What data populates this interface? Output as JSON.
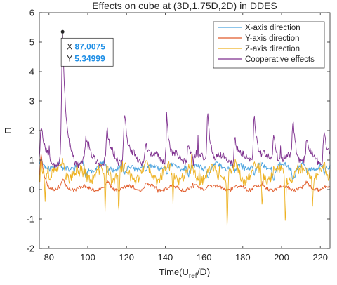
{
  "chart_data": {
    "type": "line",
    "title": "Effects on cube at (3D,1.75D,2D) in DDES",
    "xlabel": {
      "pre": "Time(U",
      "sub": "ref",
      "post": "/D)"
    },
    "ylabel": "Π",
    "xlim": [
      75,
      225
    ],
    "ylim": [
      -2,
      6
    ],
    "xticks": [
      80,
      100,
      120,
      140,
      160,
      180,
      200,
      220
    ],
    "yticks": [
      -2,
      -1,
      0,
      1,
      2,
      3,
      4,
      5,
      6
    ],
    "xtick_labels": [
      "80",
      "100",
      "120",
      "140",
      "160",
      "180",
      "200",
      "220"
    ],
    "ytick_labels": [
      "-2",
      "-1",
      "0",
      "1",
      "2",
      "3",
      "4",
      "5",
      "6"
    ],
    "legend_position": "top-right",
    "series": [
      {
        "name": "X-axis direction",
        "color": "#4aa3df",
        "baseline": 0.8,
        "var": 0.18,
        "peak_scale": 0.18,
        "spike": 0.05,
        "seed": 11,
        "peaks": [
          [
            76,
            0.9
          ],
          [
            87,
            0.6
          ],
          [
            99,
            0.4
          ],
          [
            110,
            0.5
          ],
          [
            119,
            0.4
          ],
          [
            130,
            0.5
          ],
          [
            141,
            0.5
          ],
          [
            152,
            0.4
          ],
          [
            162,
            0.4
          ],
          [
            176,
            0.5
          ],
          [
            186,
            0.5
          ],
          [
            196,
            0.4
          ],
          [
            206,
            0.4
          ],
          [
            213,
            0.5
          ],
          [
            222,
            0.4
          ]
        ]
      },
      {
        "name": "Y-axis direction",
        "color": "#e15b2a",
        "baseline": 0.05,
        "var": 0.12,
        "peak_scale": 0.1,
        "spike": 0.08,
        "seed": 23,
        "peaks": [
          [
            76,
            1.2
          ],
          [
            87,
            0.3
          ],
          [
            110,
            0.2
          ],
          [
            130,
            0.2
          ],
          [
            162,
            0.2
          ],
          [
            186,
            0.2
          ],
          [
            213,
            0.2
          ]
        ]
      },
      {
        "name": "Z-axis direction",
        "color": "#edb120",
        "baseline": 0.5,
        "var": 0.35,
        "peak_scale": 0.45,
        "spike": 0.35,
        "seed": 37,
        "peaks": [
          [
            76,
            1.0
          ],
          [
            87,
            1.0
          ],
          [
            99,
            0.6
          ],
          [
            110,
            0.8
          ],
          [
            119,
            0.6
          ],
          [
            130,
            0.7
          ],
          [
            141,
            0.7
          ],
          [
            152,
            0.6
          ],
          [
            162,
            0.6
          ],
          [
            176,
            0.7
          ],
          [
            186,
            0.8
          ],
          [
            196,
            0.6
          ],
          [
            206,
            0.6
          ],
          [
            213,
            0.7
          ],
          [
            222,
            0.6
          ]
        ],
        "dips": [
          [
            78,
            -0.3
          ],
          [
            109,
            -0.9
          ],
          [
            116,
            -1.0
          ],
          [
            144,
            -0.4
          ],
          [
            172,
            -1.35
          ],
          [
            190,
            -0.6
          ],
          [
            202,
            -1.05
          ],
          [
            216,
            -0.5
          ]
        ]
      },
      {
        "name": "Cooperative effects",
        "color": "#7e2f8e",
        "baseline": 1.0,
        "var": 0.25,
        "peak_scale": 0.5,
        "spike": 0.25,
        "seed": 53,
        "peaks": [
          [
            76,
            2.1
          ],
          [
            87,
            5.35
          ],
          [
            99,
            1.6
          ],
          [
            110,
            2.0
          ],
          [
            119,
            2.8
          ],
          [
            130,
            1.8
          ],
          [
            141,
            2.4
          ],
          [
            152,
            1.8
          ],
          [
            162,
            2.7
          ],
          [
            176,
            1.9
          ],
          [
            186,
            2.75
          ],
          [
            196,
            1.9
          ],
          [
            206,
            2.3
          ],
          [
            213,
            1.6
          ],
          [
            222,
            2.1
          ]
        ]
      }
    ],
    "datatip": {
      "x_label": "X",
      "x_value": "87.0075",
      "y_label": "Y",
      "y_value": "5.34999",
      "x": 87.0075,
      "y": 5.34999
    }
  }
}
